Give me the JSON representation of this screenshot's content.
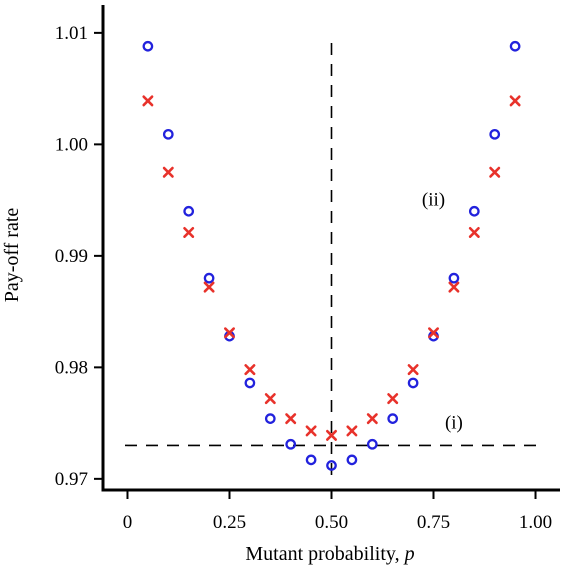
{
  "chart_data": {
    "type": "scatter",
    "xlabel": "Mutant probability, ",
    "xlabel_var": "p",
    "ylabel": "Pay-off rate",
    "xlim": [
      -0.06,
      1.06
    ],
    "ylim": [
      0.969,
      1.0125
    ],
    "x_ticks": [
      {
        "value": 0,
        "label": "0"
      },
      {
        "value": 0.25,
        "label": "0.25"
      },
      {
        "value": 0.5,
        "label": "0.50"
      },
      {
        "value": 0.75,
        "label": "0.75"
      },
      {
        "value": 1.0,
        "label": "1.00"
      }
    ],
    "y_ticks": [
      {
        "value": 0.97,
        "label": "0.97"
      },
      {
        "value": 0.98,
        "label": "0.98"
      },
      {
        "value": 0.99,
        "label": "0.99"
      },
      {
        "value": 1.0,
        "label": "1.00"
      },
      {
        "value": 1.01,
        "label": "1.01"
      }
    ],
    "grid": false,
    "series": [
      {
        "marker": "circle",
        "color": "#2222dd",
        "x": [
          0.05,
          0.1,
          0.15,
          0.2,
          0.25,
          0.3,
          0.35,
          0.4,
          0.45,
          0.5,
          0.55,
          0.6,
          0.65,
          0.7,
          0.75,
          0.8,
          0.85,
          0.9,
          0.95
        ],
        "y": [
          1.0088,
          1.0009,
          0.994,
          0.988,
          0.9828,
          0.9786,
          0.9754,
          0.9731,
          0.9717,
          0.9712,
          0.9717,
          0.9731,
          0.9754,
          0.9786,
          0.9828,
          0.988,
          0.994,
          1.0009,
          1.0088
        ]
      },
      {
        "marker": "cross",
        "color": "#e8322b",
        "x": [
          0.05,
          0.1,
          0.15,
          0.2,
          0.25,
          0.3,
          0.35,
          0.4,
          0.45,
          0.5,
          0.55,
          0.6,
          0.65,
          0.7,
          0.75,
          0.8,
          0.85,
          0.9,
          0.95
        ],
        "y": [
          1.0039,
          0.9975,
          0.9921,
          0.9872,
          0.9831,
          0.9798,
          0.9772,
          0.9754,
          0.9743,
          0.9739,
          0.9743,
          0.9754,
          0.9772,
          0.9798,
          0.9831,
          0.9872,
          0.9921,
          0.9975,
          1.0039
        ]
      }
    ],
    "reference_lines": [
      {
        "orientation": "horizontal",
        "value": 0.973,
        "style": "dashed"
      },
      {
        "orientation": "vertical",
        "value": 0.5,
        "style": "dashed"
      }
    ],
    "annotations": [
      {
        "text": "(i)",
        "x": 0.8,
        "y": 0.9745
      },
      {
        "text": "(ii)",
        "x": 0.75,
        "y": 0.9945
      }
    ]
  }
}
